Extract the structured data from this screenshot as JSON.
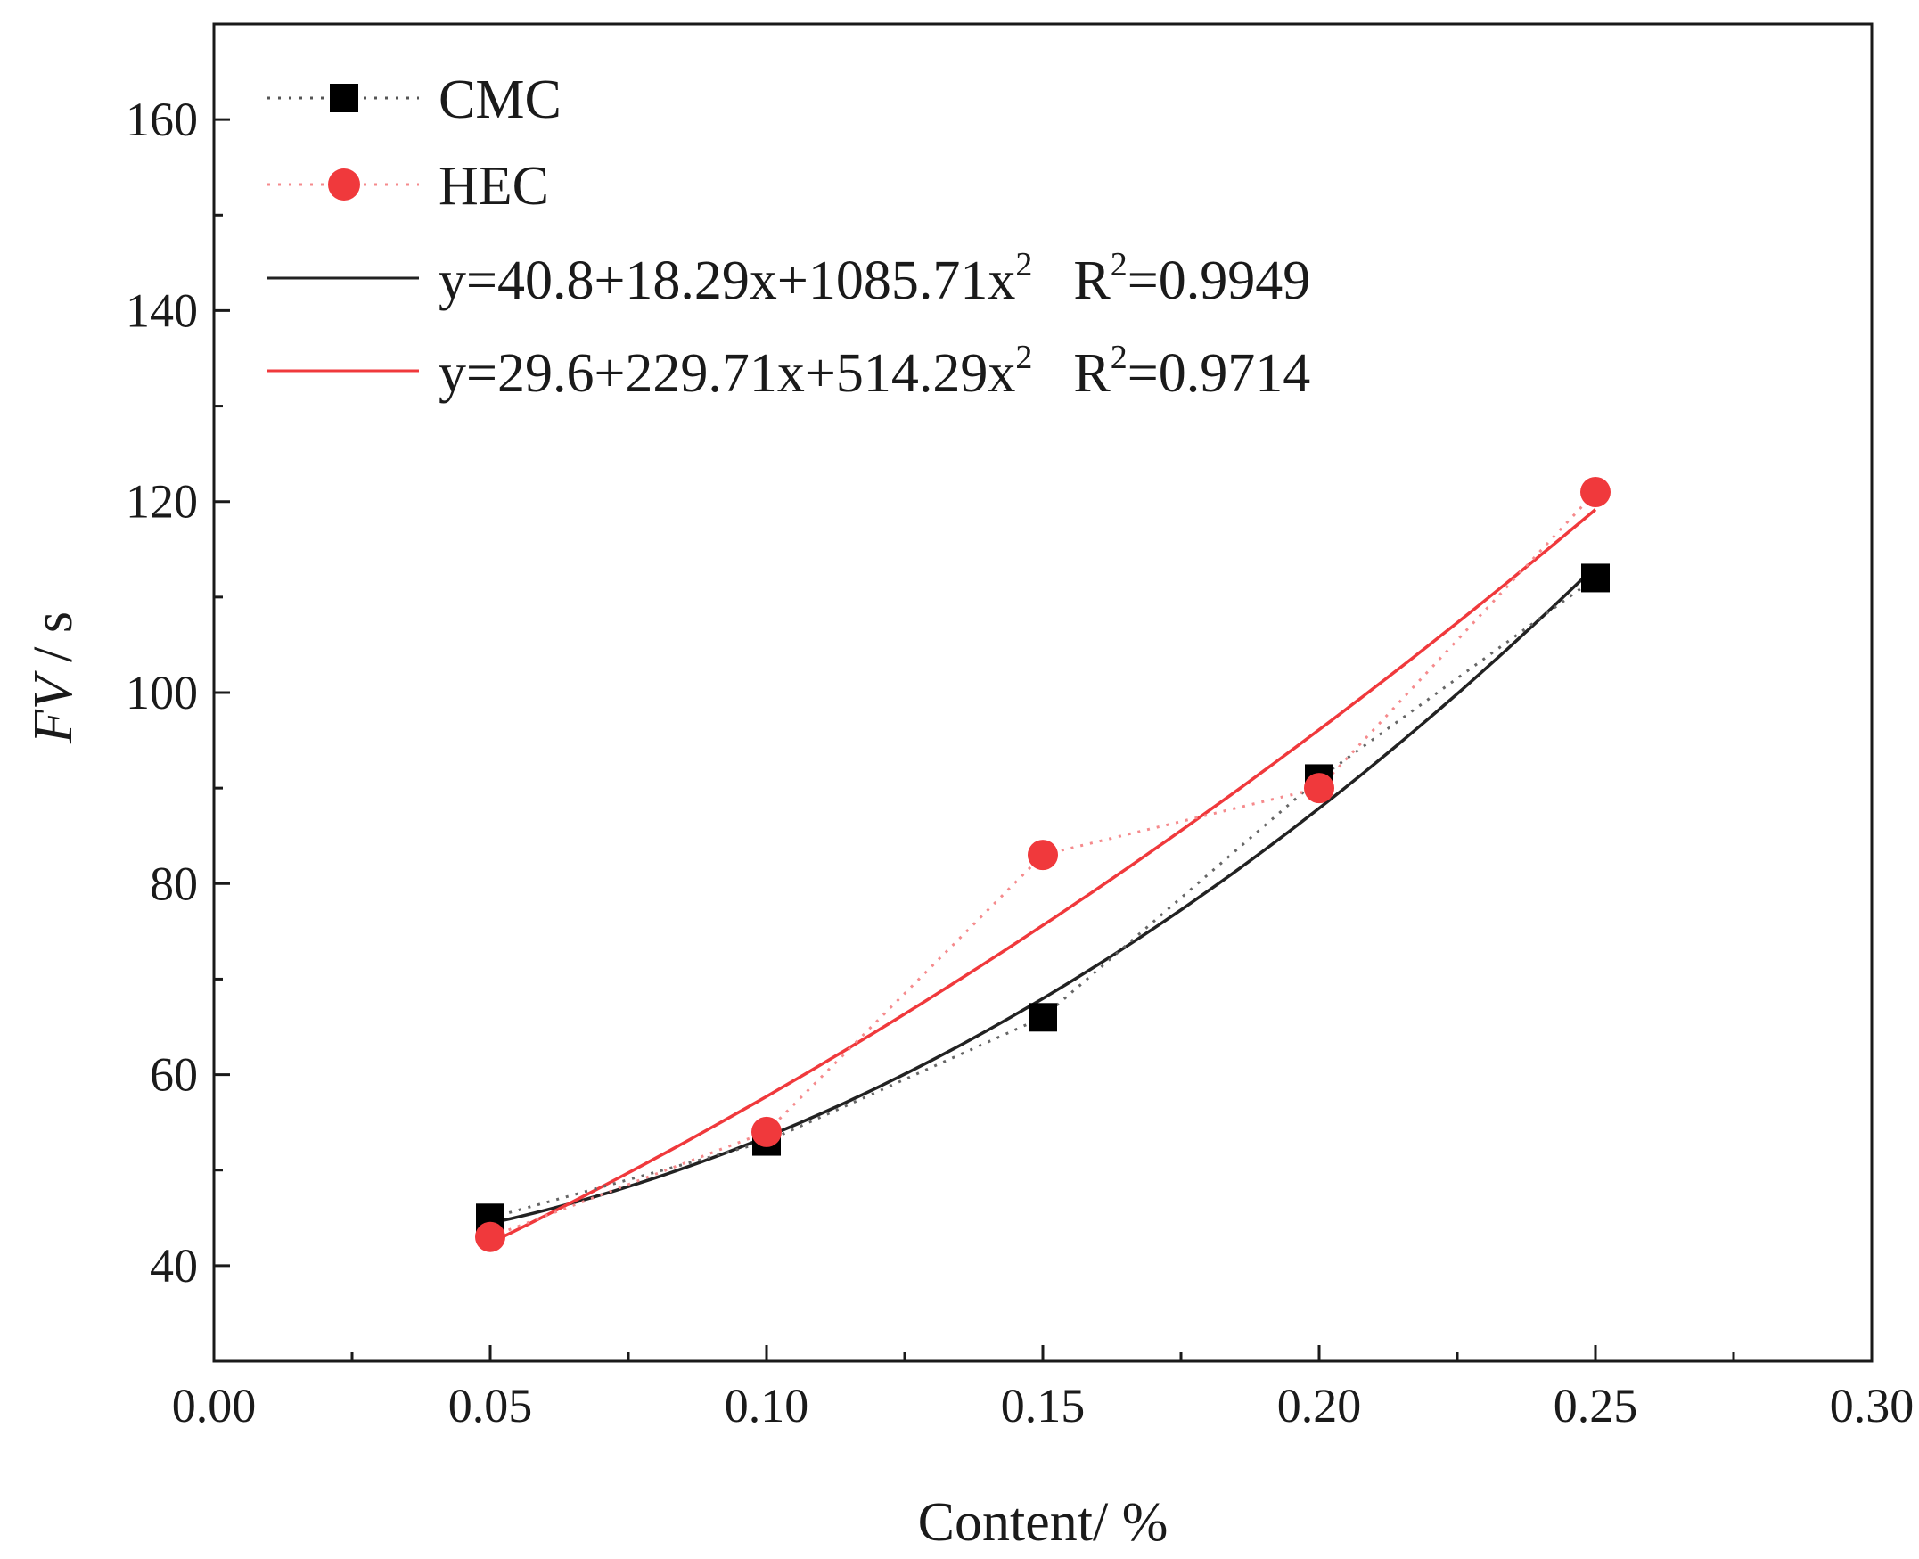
{
  "chart_data": {
    "type": "line",
    "title": "",
    "xlabel": "Content/ %",
    "ylabel": {
      "italic": "FV",
      "rest": " / s"
    },
    "xlim": [
      0.0,
      0.3
    ],
    "ylim": [
      30,
      170
    ],
    "x_ticks": [
      "0.00",
      "0.05",
      "0.10",
      "0.15",
      "0.20",
      "0.25",
      "0.30"
    ],
    "y_ticks": [
      "40",
      "60",
      "80",
      "100",
      "120",
      "140",
      "160"
    ],
    "x_tick_values": [
      0.0,
      0.05,
      0.1,
      0.15,
      0.2,
      0.25,
      0.3
    ],
    "y_tick_values": [
      40,
      60,
      80,
      100,
      120,
      140,
      160
    ],
    "legend_position": "top-left",
    "series": [
      {
        "name": "CMC",
        "marker": "square",
        "color": "#000000",
        "line_style": "dotted",
        "x": [
          0.05,
          0.1,
          0.15,
          0.2,
          0.25
        ],
        "values": [
          45,
          53,
          66,
          91,
          112
        ]
      },
      {
        "name": "HEC",
        "marker": "circle",
        "color": "#f0393c",
        "line_style": "dotted",
        "x": [
          0.05,
          0.1,
          0.15,
          0.2,
          0.25
        ],
        "values": [
          43,
          54,
          83,
          90,
          121
        ]
      }
    ],
    "fits": [
      {
        "series": "CMC",
        "color": "#222222",
        "coef": [
          40.8,
          18.29,
          1085.71
        ],
        "label_main": "y=40.8+18.29x+1085.71x",
        "label_exp": "2",
        "r2_label": "R",
        "r2_exp": "2",
        "r2_value": "=0.9949"
      },
      {
        "series": "HEC",
        "color": "#f0393c",
        "coef": [
          29.6,
          229.71,
          514.29
        ],
        "label_main": "y=29.6+229.71x+514.29x",
        "label_exp": "2",
        "r2_label": "R",
        "r2_exp": "2",
        "r2_value": "=0.9714"
      }
    ]
  }
}
